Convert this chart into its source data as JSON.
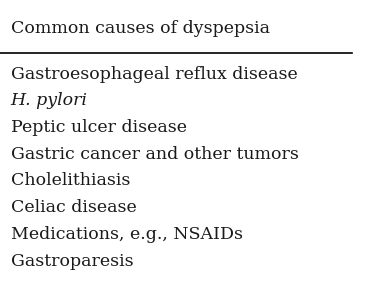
{
  "title": "Common causes of dyspepsia",
  "rows": [
    {
      "text": "Gastroesophageal reflux disease",
      "italic": false
    },
    {
      "text": "H. pylori",
      "italic": true
    },
    {
      "text": "Peptic ulcer disease",
      "italic": false
    },
    {
      "text": "Gastric cancer and other tumors",
      "italic": false
    },
    {
      "text": "Cholelithiasis",
      "italic": false
    },
    {
      "text": "Celiac disease",
      "italic": false
    },
    {
      "text": "Medications, e.g., NSAIDs",
      "italic": false
    },
    {
      "text": "Gastroparesis",
      "italic": false
    }
  ],
  "background_color": "#ffffff",
  "text_color": "#1a1a1a",
  "title_fontsize": 12.5,
  "body_fontsize": 12.5,
  "line_color": "#000000"
}
